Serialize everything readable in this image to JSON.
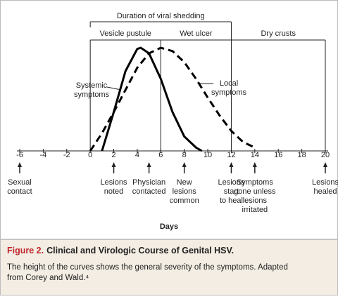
{
  "chart_data": {
    "type": "line",
    "x_label": "Days",
    "xlim": [
      -6,
      20
    ],
    "xticks": [
      -6,
      -4,
      -2,
      0,
      2,
      4,
      6,
      8,
      10,
      12,
      14,
      16,
      18,
      20
    ],
    "ylim": [
      0,
      1
    ],
    "shedding": {
      "label": "Duration of viral shedding",
      "start": 0,
      "end": 12
    },
    "phases": [
      {
        "label": "Vesicle pustule",
        "start": 0,
        "end": 6
      },
      {
        "label": "Wet ulcer",
        "start": 6,
        "end": 12
      },
      {
        "label": "Dry crusts",
        "start": 12,
        "end": 20
      }
    ],
    "series": [
      {
        "name": "Systemic symptoms",
        "color": "#000000",
        "style": "solid",
        "x": [
          1,
          2,
          3,
          4,
          4.3,
          5,
          6,
          7,
          8,
          9,
          9.5
        ],
        "values": [
          0,
          0.35,
          0.72,
          0.92,
          0.93,
          0.88,
          0.65,
          0.35,
          0.13,
          0.03,
          0
        ]
      },
      {
        "name": "Local symptoms",
        "color": "#000000",
        "style": "dashed",
        "x": [
          0,
          1,
          2,
          3,
          4,
          5,
          6,
          7,
          8,
          9,
          10,
          11,
          12,
          13,
          14
        ],
        "values": [
          0,
          0.16,
          0.35,
          0.55,
          0.75,
          0.88,
          0.93,
          0.9,
          0.8,
          0.65,
          0.48,
          0.32,
          0.18,
          0.08,
          0.03
        ]
      }
    ],
    "annotations": [
      [
        "Systemic",
        "symptoms"
      ],
      [
        "Local",
        "symptoms"
      ]
    ],
    "events": [
      {
        "day": -6,
        "label": [
          "Sexual",
          "contact"
        ]
      },
      {
        "day": 2,
        "label": [
          "Lesions",
          "noted"
        ]
      },
      {
        "day": 5,
        "label": [
          "Physician",
          "contacted"
        ]
      },
      {
        "day": 8,
        "label": [
          "New",
          "lesions",
          "common"
        ]
      },
      {
        "day": 12,
        "label": [
          "Lesions",
          "start",
          "to heal"
        ]
      },
      {
        "day": 14,
        "label": [
          "Symptoms",
          "gone unless",
          "lesions",
          "irritated"
        ]
      },
      {
        "day": 20,
        "label": [
          "Lesions",
          "healed"
        ]
      }
    ]
  },
  "caption": {
    "figure": "Figure 2.",
    "title": "Clinical and Virologic Course of Genital HSV.",
    "lines": [
      "The height of the curves shows the general severity of the symptoms. Adapted",
      "from Corey and Wald.⁴"
    ]
  }
}
